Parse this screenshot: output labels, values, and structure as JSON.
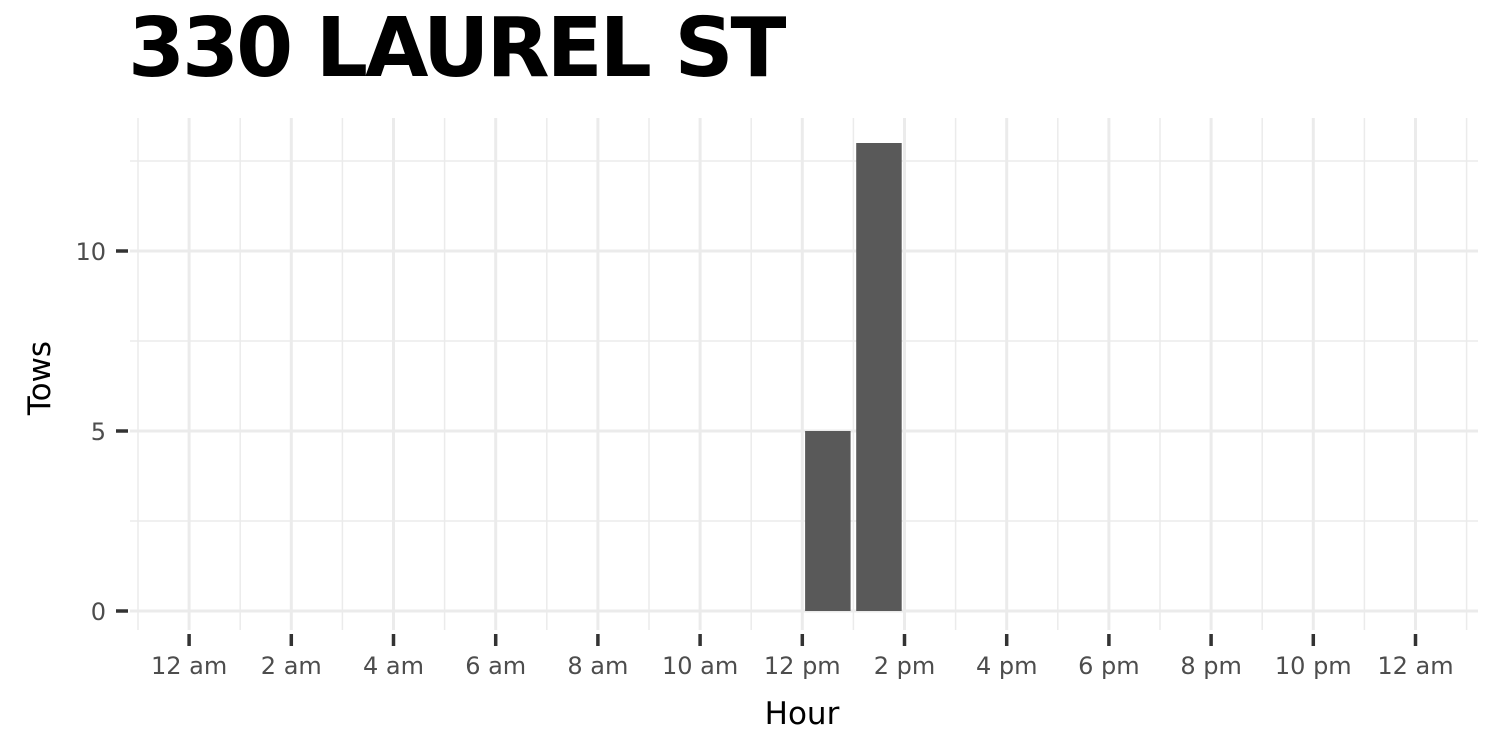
{
  "chart_data": {
    "type": "bar",
    "title": "330 LAUREL ST",
    "xlabel": "Hour",
    "ylabel": "Tows",
    "x_ticks": [
      "12 am",
      "2 am",
      "4 am",
      "6 am",
      "8 am",
      "10 am",
      "12 pm",
      "2 pm",
      "4 pm",
      "6 pm",
      "8 pm",
      "10 pm",
      "12 am"
    ],
    "x_tick_hours": [
      0,
      2,
      4,
      6,
      8,
      10,
      12,
      14,
      16,
      18,
      20,
      22,
      24
    ],
    "y_ticks": [
      0,
      5,
      10
    ],
    "y_tick_labels": [
      "0",
      "5",
      "10"
    ],
    "xlim": [
      -1,
      25
    ],
    "ylim": [
      0,
      13
    ],
    "bars": [
      {
        "hour": 12,
        "value": 5
      },
      {
        "hour": 13,
        "value": 13
      }
    ],
    "grid": true,
    "bar_color": "#595959",
    "grid_color": "#ebebeb"
  }
}
